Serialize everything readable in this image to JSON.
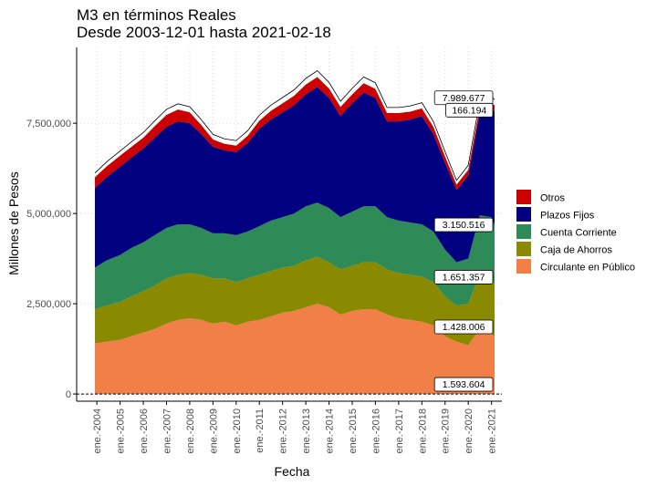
{
  "chart_data": {
    "type": "area",
    "stacked": true,
    "title": "M3 en términos Reales",
    "subtitle": "Desde 2003-12-01 hasta 2021-02-18",
    "xlabel": "Fecha",
    "ylabel": "Millones de Pesos",
    "x_range": [
      "2003-12-01",
      "2021-02-18"
    ],
    "ylim": [
      -200000,
      9600000
    ],
    "y_ticks": [
      0,
      2500000,
      5000000,
      7500000
    ],
    "y_tick_labels": [
      "0",
      "2,500,000",
      "5,000,000",
      "7,500,000"
    ],
    "x_tick_labels": [
      "ene.-2004",
      "ene.-2005",
      "ene.-2006",
      "ene.-2007",
      "ene.-2008",
      "ene.-2009",
      "ene.-2010",
      "ene.-2011",
      "ene.-2012",
      "ene.-2013",
      "ene.-2014",
      "ene.-2015",
      "ene.-2016",
      "ene.-2017",
      "ene.-2018",
      "ene.-2019",
      "ene.-2020",
      "ene.-2021"
    ],
    "x": [
      "2003-12-01",
      "2004-06-01",
      "2005-01-01",
      "2005-07-01",
      "2006-01-01",
      "2006-07-01",
      "2007-01-01",
      "2007-07-01",
      "2008-01-01",
      "2008-07-01",
      "2009-01-01",
      "2009-07-01",
      "2010-01-01",
      "2010-07-01",
      "2011-01-01",
      "2011-07-01",
      "2012-01-01",
      "2012-07-01",
      "2013-01-01",
      "2013-07-01",
      "2014-01-01",
      "2014-07-01",
      "2015-01-01",
      "2015-07-01",
      "2016-01-01",
      "2016-07-01",
      "2017-01-01",
      "2017-07-01",
      "2018-01-01",
      "2018-07-01",
      "2019-01-01",
      "2019-07-01",
      "2020-01-01",
      "2020-07-01",
      "2021-01-01",
      "2021-02-18"
    ],
    "grid": true,
    "legend_position": "right",
    "zero_line": "dashed",
    "total_line": true,
    "series": [
      {
        "name": "Circulante en Público",
        "color": "#F08048",
        "values": [
          1400000,
          1450000,
          1500000,
          1600000,
          1700000,
          1800000,
          1950000,
          2050000,
          2100000,
          2050000,
          1950000,
          2000000,
          1900000,
          2000000,
          2050000,
          2150000,
          2250000,
          2300000,
          2400000,
          2500000,
          2400000,
          2200000,
          2300000,
          2350000,
          2350000,
          2200000,
          2100000,
          2050000,
          2000000,
          1900000,
          1600000,
          1450000,
          1350000,
          1800000,
          1650000,
          1593604
        ]
      },
      {
        "name": "Caja de Ahorros",
        "color": "#8A8A00",
        "values": [
          950000,
          1000000,
          1050000,
          1100000,
          1150000,
          1200000,
          1250000,
          1250000,
          1250000,
          1250000,
          1250000,
          1200000,
          1200000,
          1200000,
          1250000,
          1250000,
          1250000,
          1250000,
          1300000,
          1300000,
          1250000,
          1250000,
          1250000,
          1300000,
          1300000,
          1250000,
          1250000,
          1250000,
          1250000,
          1200000,
          1100000,
          1000000,
          1150000,
          1500000,
          1550000,
          1428006
        ]
      },
      {
        "name": "Cuenta Corriente",
        "color": "#2E8B57",
        "values": [
          1150000,
          1250000,
          1300000,
          1350000,
          1350000,
          1400000,
          1400000,
          1400000,
          1350000,
          1300000,
          1250000,
          1250000,
          1300000,
          1300000,
          1350000,
          1400000,
          1400000,
          1450000,
          1500000,
          1500000,
          1500000,
          1450000,
          1500000,
          1550000,
          1550000,
          1450000,
          1450000,
          1450000,
          1450000,
          1400000,
          1300000,
          1200000,
          1250000,
          1650000,
          1700000,
          1651357
        ]
      },
      {
        "name": "Plazos Fijos",
        "color": "#000080",
        "values": [
          2200000,
          2300000,
          2450000,
          2500000,
          2600000,
          2700000,
          2800000,
          2850000,
          2800000,
          2600000,
          2400000,
          2300000,
          2300000,
          2450000,
          2700000,
          2800000,
          2900000,
          3000000,
          3100000,
          3200000,
          3050000,
          2800000,
          3000000,
          3150000,
          3000000,
          2650000,
          2750000,
          2850000,
          3000000,
          2700000,
          2400000,
          2000000,
          2300000,
          2850000,
          3000000,
          3150516
        ]
      },
      {
        "name": "Otros",
        "color": "#CC0000",
        "values": [
          300000,
          300000,
          300000,
          300000,
          300000,
          320000,
          330000,
          330000,
          300000,
          250000,
          200000,
          180000,
          180000,
          200000,
          220000,
          240000,
          250000,
          260000,
          270000,
          280000,
          260000,
          250000,
          250000,
          260000,
          250000,
          230000,
          230000,
          220000,
          210000,
          200000,
          180000,
          150000,
          160000,
          170000,
          180000,
          166194
        ]
      }
    ],
    "annotations": [
      {
        "label": "7.989.677",
        "x": "2021-02-18",
        "y": 7989677
      },
      {
        "label": "166.194",
        "x": "2021-02-18",
        "y": 7823483
      },
      {
        "label": "3.150.516",
        "x": "2021-02-18",
        "y": 4673000
      },
      {
        "label": "1.651.357",
        "x": "2021-02-18",
        "y": 3021610
      },
      {
        "label": "1.428.006",
        "x": "2021-02-18",
        "y": 1593604
      },
      {
        "label": "1.593.604",
        "x": "2021-02-18",
        "y": 0
      }
    ]
  }
}
